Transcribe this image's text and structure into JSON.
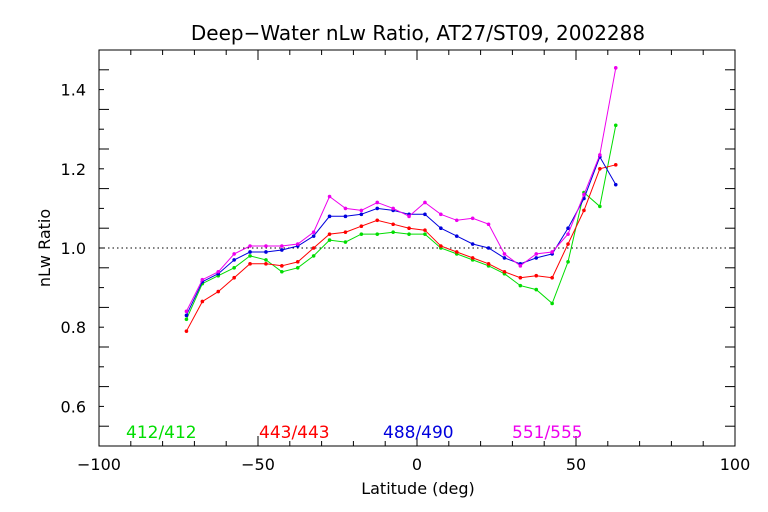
{
  "chart_data": {
    "type": "line",
    "title": "Deep−Water nLw Ratio, AT27/ST09, 2002288",
    "xlabel": "Latitude (deg)",
    "ylabel": "nLw Ratio",
    "xlim": [
      -100,
      100
    ],
    "ylim": [
      0.5,
      1.5
    ],
    "x_ticks": [
      -100,
      -50,
      0,
      50,
      100
    ],
    "x_tick_labels": [
      "−100",
      "−50",
      "0",
      "50",
      "100"
    ],
    "y_ticks": [
      0.6,
      0.8,
      1.0,
      1.2,
      1.4
    ],
    "y_tick_labels": [
      "0.6",
      "0.8",
      "1.0",
      "1.2",
      "1.4"
    ],
    "reference_line": {
      "y": 1.0,
      "style": "dotted"
    },
    "x": [
      -72.5,
      -67.5,
      -62.5,
      -57.5,
      -52.5,
      -47.5,
      -42.5,
      -37.5,
      -32.5,
      -27.5,
      -22.5,
      -17.5,
      -12.5,
      -7.5,
      -2.5,
      2.5,
      7.5,
      12.5,
      17.5,
      22.5,
      27.5,
      32.5,
      37.5,
      42.5,
      47.5,
      52.5,
      57.5,
      62.5
    ],
    "series": [
      {
        "name": "412/412",
        "color": "#00dd00",
        "values": [
          0.82,
          0.91,
          0.93,
          0.95,
          0.98,
          0.97,
          0.94,
          0.95,
          0.98,
          1.02,
          1.015,
          1.035,
          1.035,
          1.04,
          1.035,
          1.035,
          1.0,
          0.985,
          0.97,
          0.955,
          0.935,
          0.905,
          0.895,
          0.86,
          0.965,
          1.14,
          1.105,
          1.31
        ]
      },
      {
        "name": "443/443",
        "color": "#ff0000",
        "values": [
          0.79,
          0.865,
          0.89,
          0.925,
          0.96,
          0.96,
          0.955,
          0.965,
          1.0,
          1.035,
          1.04,
          1.055,
          1.07,
          1.06,
          1.05,
          1.045,
          1.005,
          0.99,
          0.975,
          0.96,
          0.94,
          0.925,
          0.93,
          0.925,
          1.01,
          1.095,
          1.2,
          1.21
        ]
      },
      {
        "name": "488/490",
        "color": "#0000dd",
        "values": [
          0.83,
          0.915,
          0.935,
          0.97,
          0.99,
          0.99,
          0.995,
          1.005,
          1.03,
          1.08,
          1.08,
          1.085,
          1.1,
          1.095,
          1.085,
          1.085,
          1.05,
          1.03,
          1.01,
          1.0,
          0.975,
          0.96,
          0.975,
          0.985,
          1.05,
          1.125,
          1.23,
          1.16
        ]
      },
      {
        "name": "551/555",
        "color": "#ee00ee",
        "values": [
          0.84,
          0.92,
          0.94,
          0.985,
          1.005,
          1.005,
          1.005,
          1.01,
          1.04,
          1.13,
          1.1,
          1.095,
          1.115,
          1.1,
          1.08,
          1.115,
          1.085,
          1.07,
          1.075,
          1.06,
          0.985,
          0.955,
          0.985,
          0.99,
          1.035,
          1.135,
          1.235,
          1.455
        ]
      }
    ],
    "legend": {
      "placement": "bottom-inside"
    },
    "grid": false
  }
}
